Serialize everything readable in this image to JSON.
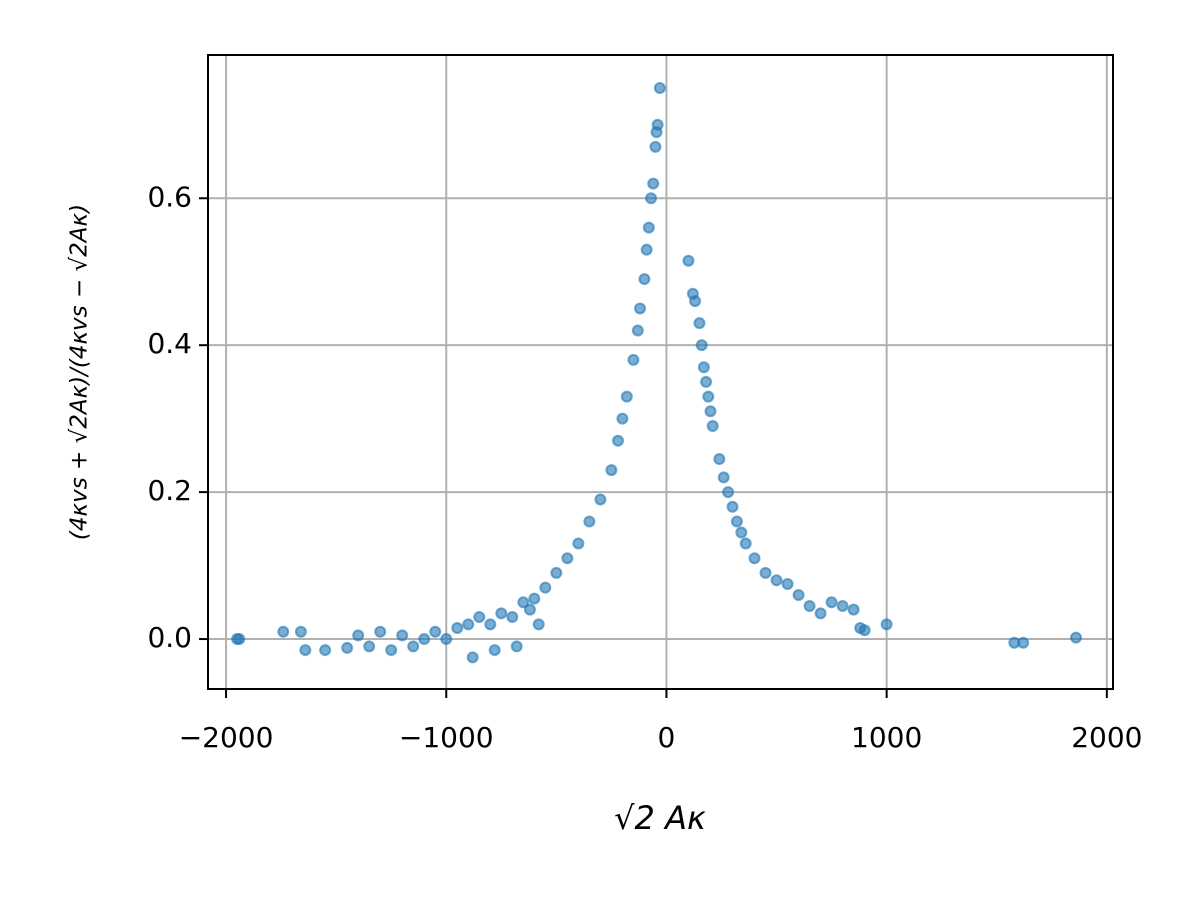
{
  "chart_data": {
    "type": "scatter",
    "xlabel": "√2 Aκ",
    "ylabel": "(4κvs + √2Aκ)/(4κvs − √2Aκ)",
    "x": [
      -1950,
      -1940,
      -1740,
      -1660,
      -1640,
      -1550,
      -1450,
      -1400,
      -1350,
      -1300,
      -1250,
      -1200,
      -1150,
      -1100,
      -1050,
      -1000,
      -950,
      -900,
      -880,
      -850,
      -800,
      -780,
      -750,
      -700,
      -680,
      -650,
      -620,
      -600,
      -580,
      -550,
      -500,
      -450,
      -400,
      -350,
      -300,
      -250,
      -220,
      -200,
      -180,
      -150,
      -130,
      -120,
      -100,
      -90,
      -80,
      -70,
      -60,
      -50,
      -45,
      -40,
      -30,
      100,
      120,
      130,
      150,
      160,
      170,
      180,
      190,
      200,
      210,
      240,
      260,
      280,
      300,
      320,
      340,
      360,
      400,
      450,
      500,
      550,
      600,
      650,
      700,
      750,
      800,
      850,
      880,
      900,
      1000,
      1580,
      1620,
      1860
    ],
    "values": [
      0.0,
      0.0,
      0.01,
      0.01,
      -0.015,
      -0.015,
      -0.012,
      0.005,
      -0.01,
      0.01,
      -0.015,
      0.005,
      -0.01,
      0.0,
      0.01,
      0.0,
      0.015,
      0.02,
      -0.025,
      0.03,
      0.02,
      -0.015,
      0.035,
      0.03,
      -0.01,
      0.05,
      0.04,
      0.055,
      0.02,
      0.07,
      0.09,
      0.11,
      0.13,
      0.16,
      0.19,
      0.23,
      0.27,
      0.3,
      0.33,
      0.38,
      0.42,
      0.45,
      0.49,
      0.53,
      0.56,
      0.6,
      0.62,
      0.67,
      0.69,
      0.7,
      0.75,
      0.515,
      0.47,
      0.46,
      0.43,
      0.4,
      0.37,
      0.35,
      0.33,
      0.31,
      0.29,
      0.245,
      0.22,
      0.2,
      0.18,
      0.16,
      0.145,
      0.13,
      0.11,
      0.09,
      0.08,
      0.075,
      0.06,
      0.045,
      0.035,
      0.05,
      0.045,
      0.04,
      0.015,
      0.012,
      0.02,
      -0.005,
      -0.005,
      0.002
    ],
    "color": "#1f77b4",
    "alpha": 0.6,
    "xlim": [
      -2082,
      2028
    ],
    "xticks": [
      {
        "value": -2000,
        "label": "−2000"
      },
      {
        "value": -1000,
        "label": "−1000"
      },
      0,
      1000,
      2000
    ],
    "ylim": [
      -0.068,
      0.795
    ],
    "yticks": [
      {
        "value": 0,
        "label": "0.0"
      },
      0.2,
      0.4,
      0.6
    ],
    "grid": true
  }
}
